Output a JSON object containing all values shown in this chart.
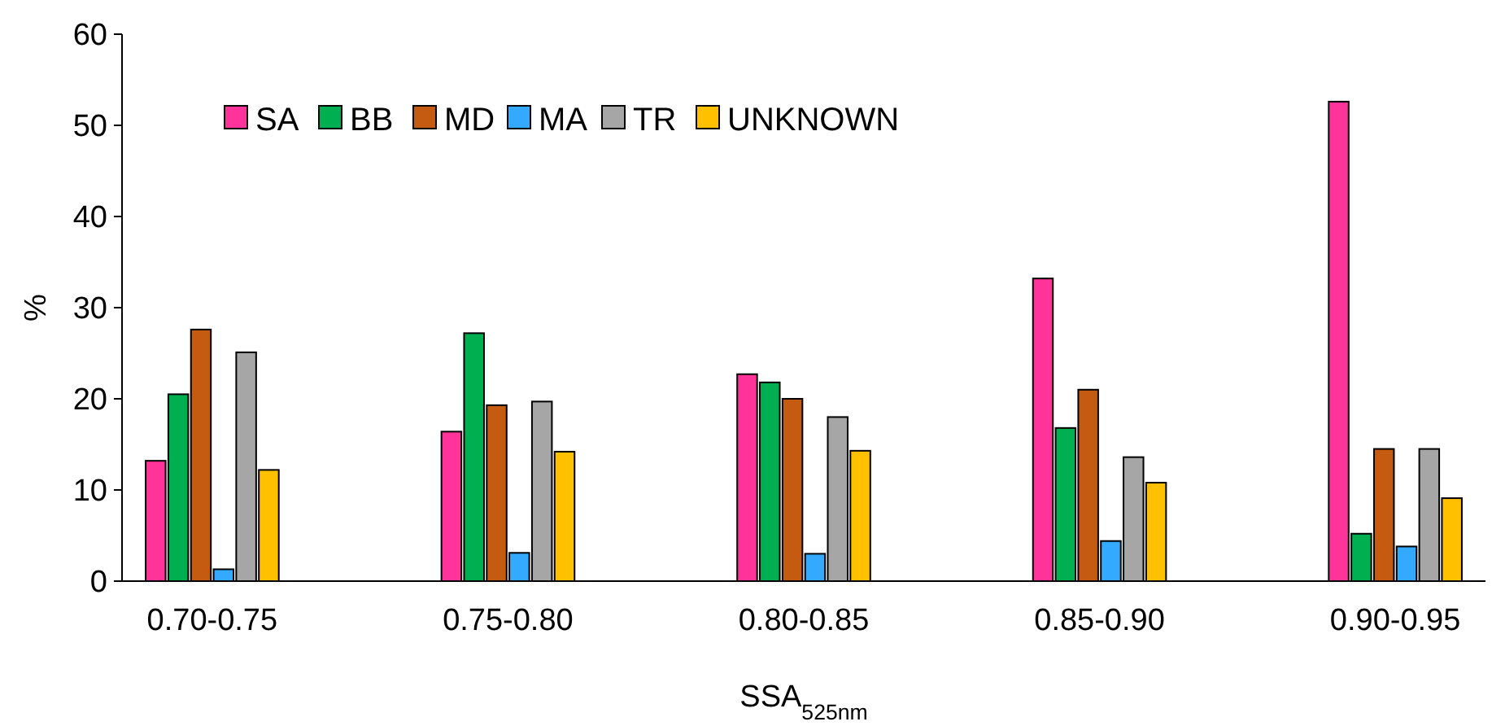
{
  "chart_data": {
    "type": "bar",
    "xlabel": "SSA$_{525nm}$",
    "ylabel": "%",
    "categories": [
      "0.70-0.75",
      "0.75-0.80",
      "0.80-0.85",
      "0.85-0.90",
      "0.90-0.95"
    ],
    "series": [
      {
        "name": "SA",
        "color": "#ff3399",
        "values": [
          13.2,
          16.4,
          22.7,
          33.2,
          52.6
        ]
      },
      {
        "name": "BB",
        "color": "#00b050",
        "values": [
          20.5,
          27.2,
          21.8,
          16.8,
          5.2
        ]
      },
      {
        "name": "MD",
        "color": "#c55a11",
        "values": [
          27.6,
          19.3,
          20.0,
          21.0,
          14.5
        ]
      },
      {
        "name": "MA",
        "color": "#33aaff",
        "values": [
          1.3,
          3.1,
          3.0,
          4.4,
          3.8
        ]
      },
      {
        "name": "TR",
        "color": "#a6a6a6",
        "values": [
          25.1,
          19.7,
          18.0,
          13.6,
          14.5
        ]
      },
      {
        "name": "UNKNOWN",
        "color": "#ffc000",
        "values": [
          12.2,
          14.2,
          14.3,
          10.8,
          9.1
        ]
      }
    ],
    "ylim": [
      0,
      60
    ],
    "yticks": [
      0,
      10,
      20,
      30,
      40,
      50,
      60
    ],
    "grid": false,
    "legend": "top left"
  }
}
